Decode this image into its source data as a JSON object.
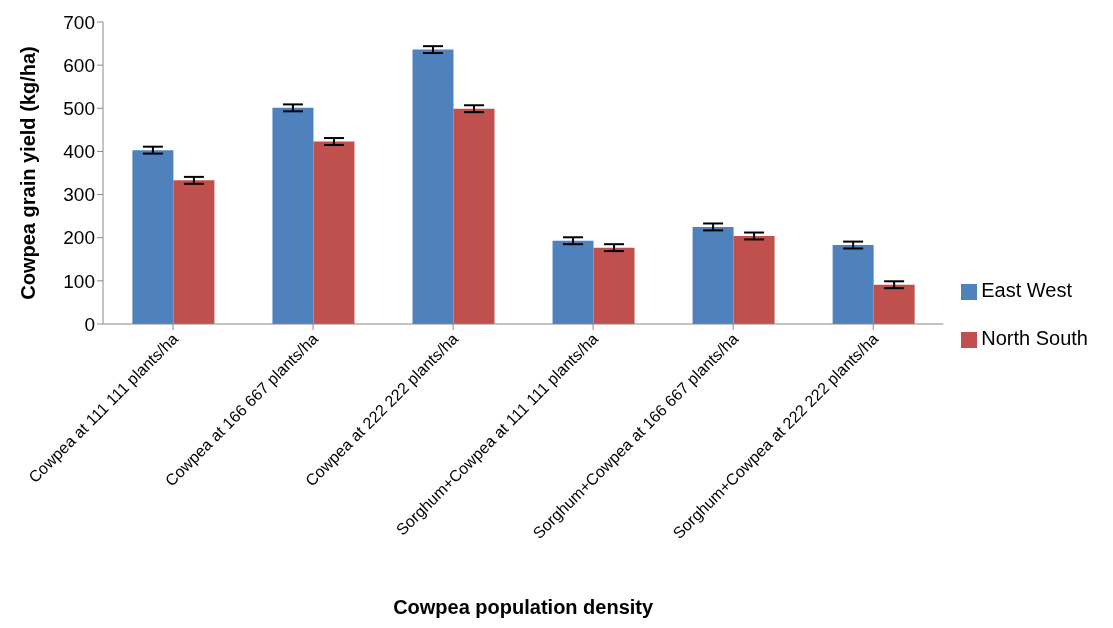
{
  "chart_data": {
    "type": "bar",
    "xlabel": "Cowpea population density",
    "ylabel": "Cowpea grain yield (kg/ha)",
    "categories": [
      "Cowpea at 111 111 plants/ha",
      "Cowpea at 166 667 plants/ha",
      "Cowpea at 222 222 plants/ha",
      "Sorghum+Cowpea at 111 111 plants/ha",
      "Sorghum+Cowpea at 166 667 plants/ha",
      "Sorghum+Cowpea at 222 222 plants/ha"
    ],
    "series": [
      {
        "name": "East West",
        "color": "#4f81bd",
        "values": [
          403,
          501,
          636,
          193,
          225,
          183
        ],
        "errors": [
          8,
          8,
          8,
          8,
          8,
          8
        ]
      },
      {
        "name": "North South",
        "color": "#c0504d",
        "values": [
          333,
          423,
          499,
          177,
          204,
          91
        ],
        "errors": [
          8,
          8,
          8,
          8,
          8,
          8
        ]
      }
    ],
    "ylim": [
      0,
      700
    ],
    "yticks": [
      0,
      100,
      200,
      300,
      400,
      500,
      600,
      700
    ],
    "legend": "right"
  }
}
